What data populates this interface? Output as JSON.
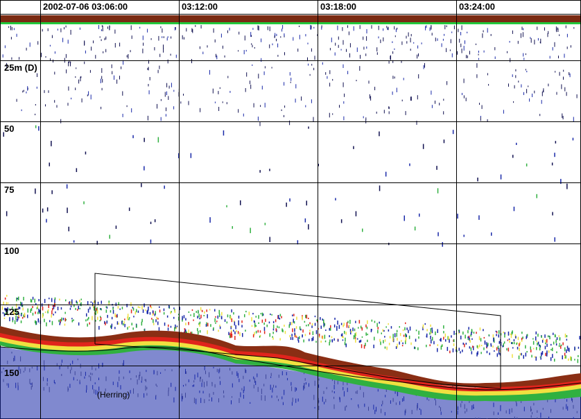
{
  "time_axis": {
    "labels": [
      "2002-07-06 03:06:00",
      "03:12:00",
      "03:18:00",
      "03:24:00"
    ]
  },
  "depth_axis": {
    "labels": [
      "25m (D)",
      "50",
      "75",
      "100",
      "125",
      "150"
    ]
  },
  "annotations": {
    "species_label": "(Herring)"
  },
  "colors": {
    "background": "#ffffff",
    "grid": "#000000",
    "surface_band": "#7a2a12",
    "surface_line": "#22c83c",
    "bottom_core": "#8a2e14",
    "bottom_red": "#e0241c",
    "bottom_orange": "#f0a020",
    "bottom_yellow": "#f0e040",
    "bottom_green": "#30b040",
    "bottom_blue": "#1828a8",
    "herring_school": "#20a030",
    "weak_echo": "#101050"
  }
}
